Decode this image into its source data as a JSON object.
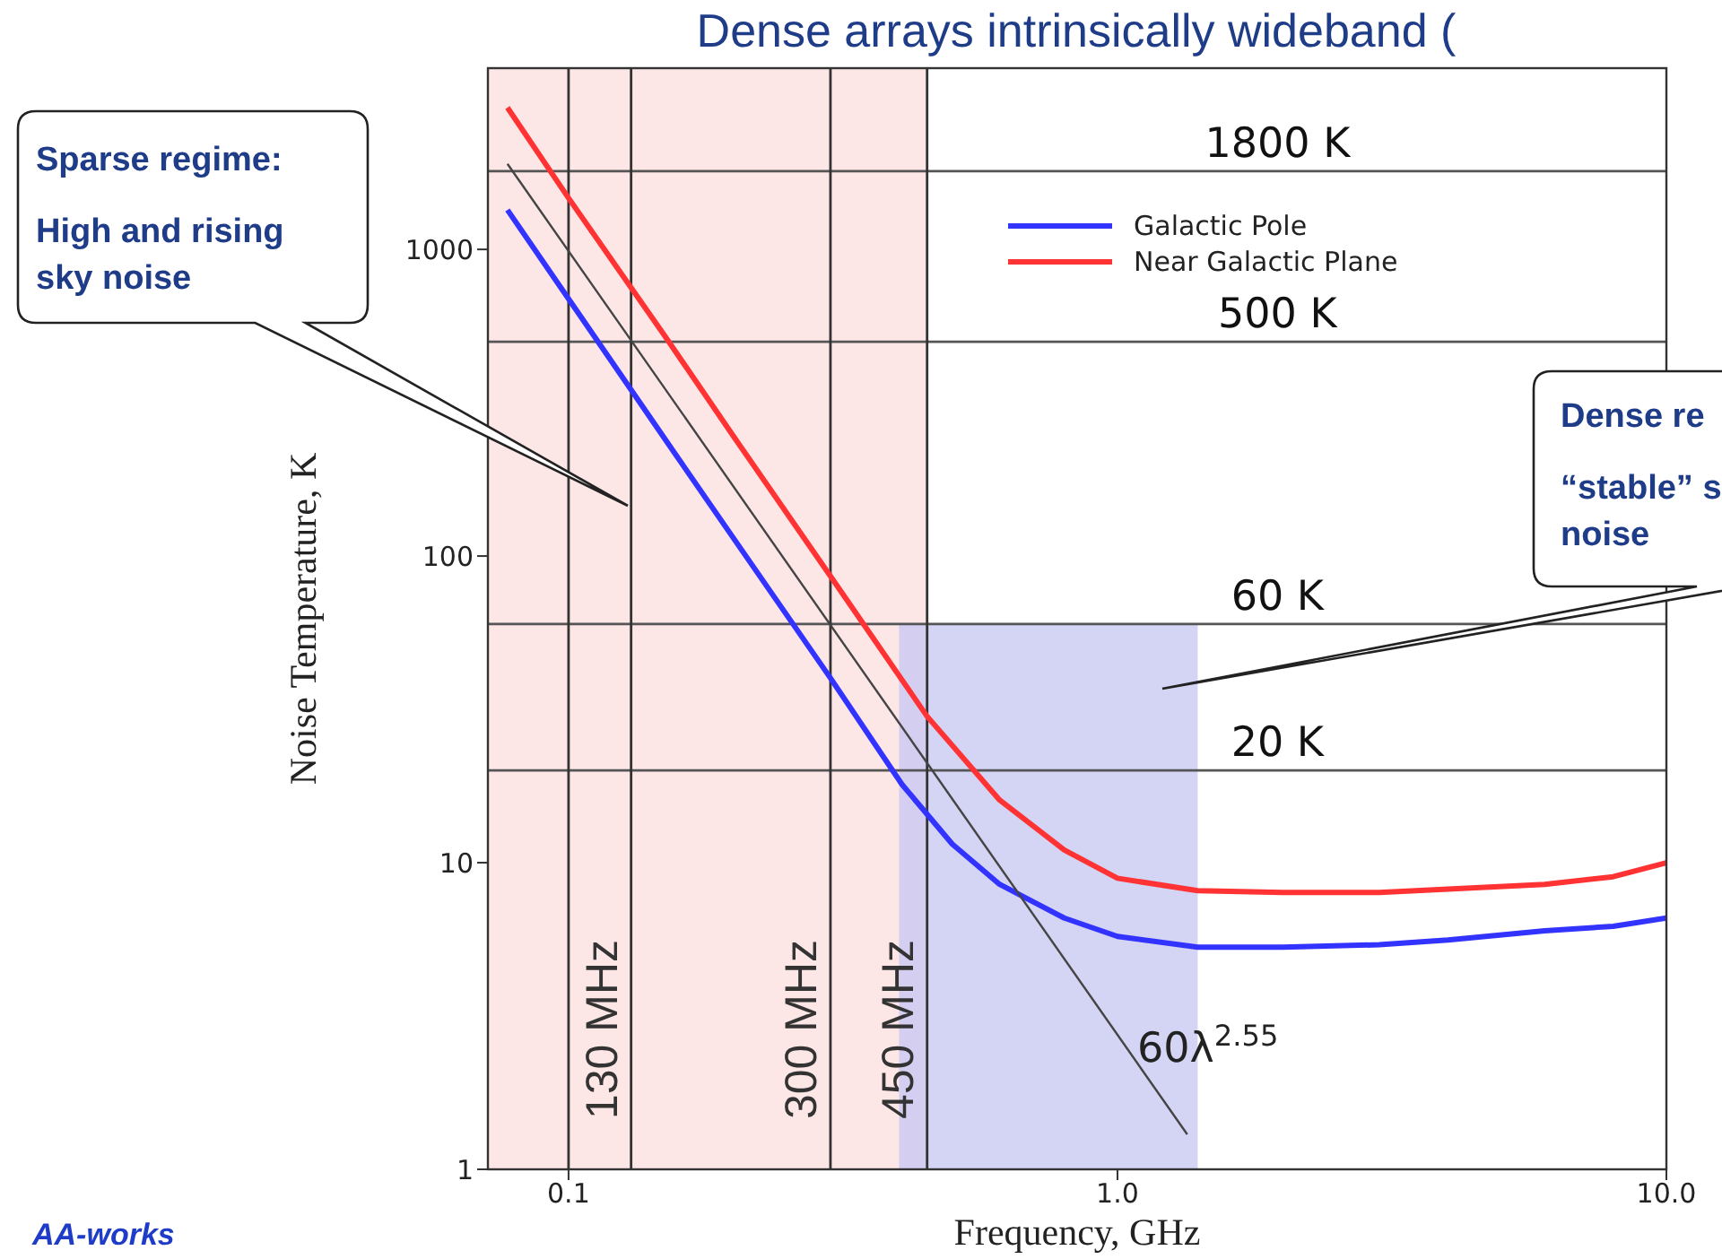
{
  "chart_data": {
    "type": "line",
    "title": "Dense arrays intrinsically wideband (",
    "xlabel": "Frequency, GHz",
    "ylabel": "Noise Temperature, K",
    "log": "xy",
    "xlim": [
      0.0713,
      10
    ],
    "ylim": [
      1,
      3900
    ],
    "xticks": [
      {
        "value": 0.1,
        "label": "0.1"
      },
      {
        "value": 1,
        "label": "1.0"
      },
      {
        "value": 10,
        "label": "10.0"
      }
    ],
    "yticks": [
      1,
      10,
      100,
      1000
    ],
    "legend": "top right",
    "marker": "none",
    "line_style": "solid",
    "series": [
      {
        "name": "Galactic Pole",
        "color": "#3333ff",
        "x": [
          0.0774,
          0.1,
          0.15,
          0.2,
          0.3,
          0.405,
          0.5,
          0.61,
          0.8,
          1.0,
          1.4,
          2,
          3,
          4,
          6,
          8,
          10
        ],
        "values": [
          1345,
          690,
          240,
          114,
          40,
          18,
          11.5,
          8.5,
          6.6,
          5.75,
          5.3,
          5.3,
          5.4,
          5.6,
          6.0,
          6.2,
          6.6
        ]
      },
      {
        "name": "Near Galactic Plane",
        "color": "#ff3333",
        "x": [
          0.0774,
          0.1,
          0.15,
          0.2,
          0.3,
          0.45,
          0.61,
          0.8,
          1.0,
          1.4,
          2,
          3,
          4,
          6,
          8,
          10
        ],
        "values": [
          2900,
          1470,
          520,
          245,
          86,
          30,
          16,
          11,
          8.9,
          8.1,
          8.0,
          8.0,
          8.2,
          8.5,
          9.0,
          10
        ]
      },
      {
        "color": "#444444",
        "x": [
          0.0774,
          1.34
        ],
        "values": [
          1900,
          1.3
        ]
      },
      {
        "type": "area",
        "color": "#c9c9f2",
        "x": [
          0.4,
          1.4
        ],
        "values": [
          60,
          60
        ]
      }
    ],
    "ref_lines": [
      {
        "axis": "y",
        "value": 1800,
        "label": "1800 K",
        "color": "#555555"
      },
      {
        "axis": "y",
        "value": 500,
        "label": "500 K",
        "color": "#555555"
      },
      {
        "axis": "y",
        "value": 60,
        "label": "60 K",
        "color": "#555555"
      },
      {
        "axis": "y",
        "value": 20,
        "label": "20 K",
        "color": "#555555"
      },
      {
        "axis": "x",
        "value": 0.1,
        "color": "#333333"
      },
      {
        "axis": "x",
        "value": 0.13,
        "label": "130 MHz",
        "color": "#333333"
      },
      {
        "axis": "x",
        "value": 0.3,
        "label": "300 MHz",
        "color": "#333333"
      },
      {
        "axis": "x",
        "value": 0.45,
        "label": "450 MHz",
        "color": "#333333"
      }
    ],
    "bands": [
      {
        "axis": "x",
        "from": 0.0713,
        "to": 0.45,
        "color": "#fde6e6"
      }
    ],
    "annotations": [
      "Sparse regime:\nHigh and rising\nsky noise",
      "Dense re\n“stable” s\nnoise",
      "60λ$^{2.55}$",
      "AA-works"
    ]
  }
}
